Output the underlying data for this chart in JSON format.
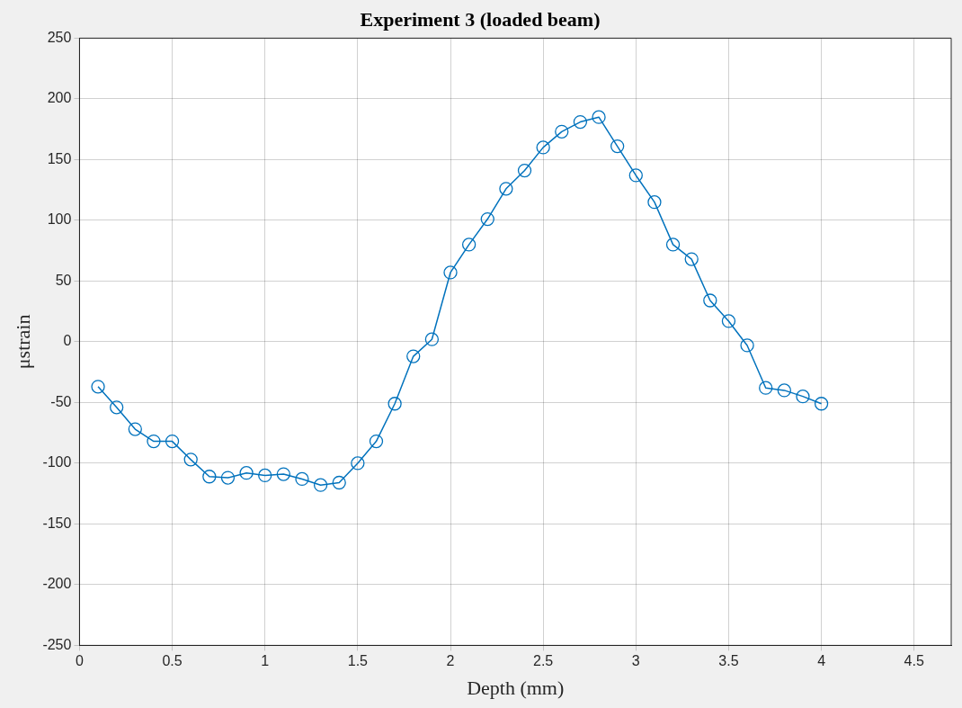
{
  "chart_data": {
    "type": "line",
    "title": "Experiment 3 (loaded beam)",
    "xlabel": "Depth (mm)",
    "ylabel": "μstrain",
    "x": [
      0.1,
      0.2,
      0.3,
      0.4,
      0.5,
      0.6,
      0.7,
      0.8,
      0.9,
      1.0,
      1.1,
      1.2,
      1.3,
      1.4,
      1.5,
      1.6,
      1.7,
      1.8,
      1.9,
      2.0,
      2.1,
      2.2,
      2.3,
      2.4,
      2.5,
      2.6,
      2.7,
      2.8,
      2.9,
      3.0,
      3.1,
      3.2,
      3.3,
      3.4,
      3.5,
      3.6,
      3.7,
      3.8,
      3.9,
      4.0
    ],
    "series": [
      {
        "color": "#0072bd",
        "values": [
          -37,
          -54,
          -72,
          -82,
          -82,
          -97,
          -111,
          -112,
          -108,
          -110,
          -109,
          -113,
          -118,
          -116,
          -100,
          -82,
          -51,
          -12,
          2,
          57,
          80,
          101,
          126,
          141,
          160,
          173,
          181,
          185,
          161,
          137,
          115,
          80,
          68,
          34,
          17,
          -3,
          -38,
          -40,
          -45,
          -51
        ]
      }
    ],
    "xlim": [
      0,
      4.7
    ],
    "xticks": [
      0,
      0.5,
      1,
      1.5,
      2,
      2.5,
      3,
      3.5,
      4,
      4.5
    ],
    "ylim": [
      -250,
      250
    ],
    "yticks": [
      -250,
      -200,
      -150,
      -100,
      -50,
      0,
      50,
      100,
      150,
      200,
      250
    ],
    "grid": true,
    "legend": false,
    "marker": "circle",
    "line_style": "solid"
  }
}
